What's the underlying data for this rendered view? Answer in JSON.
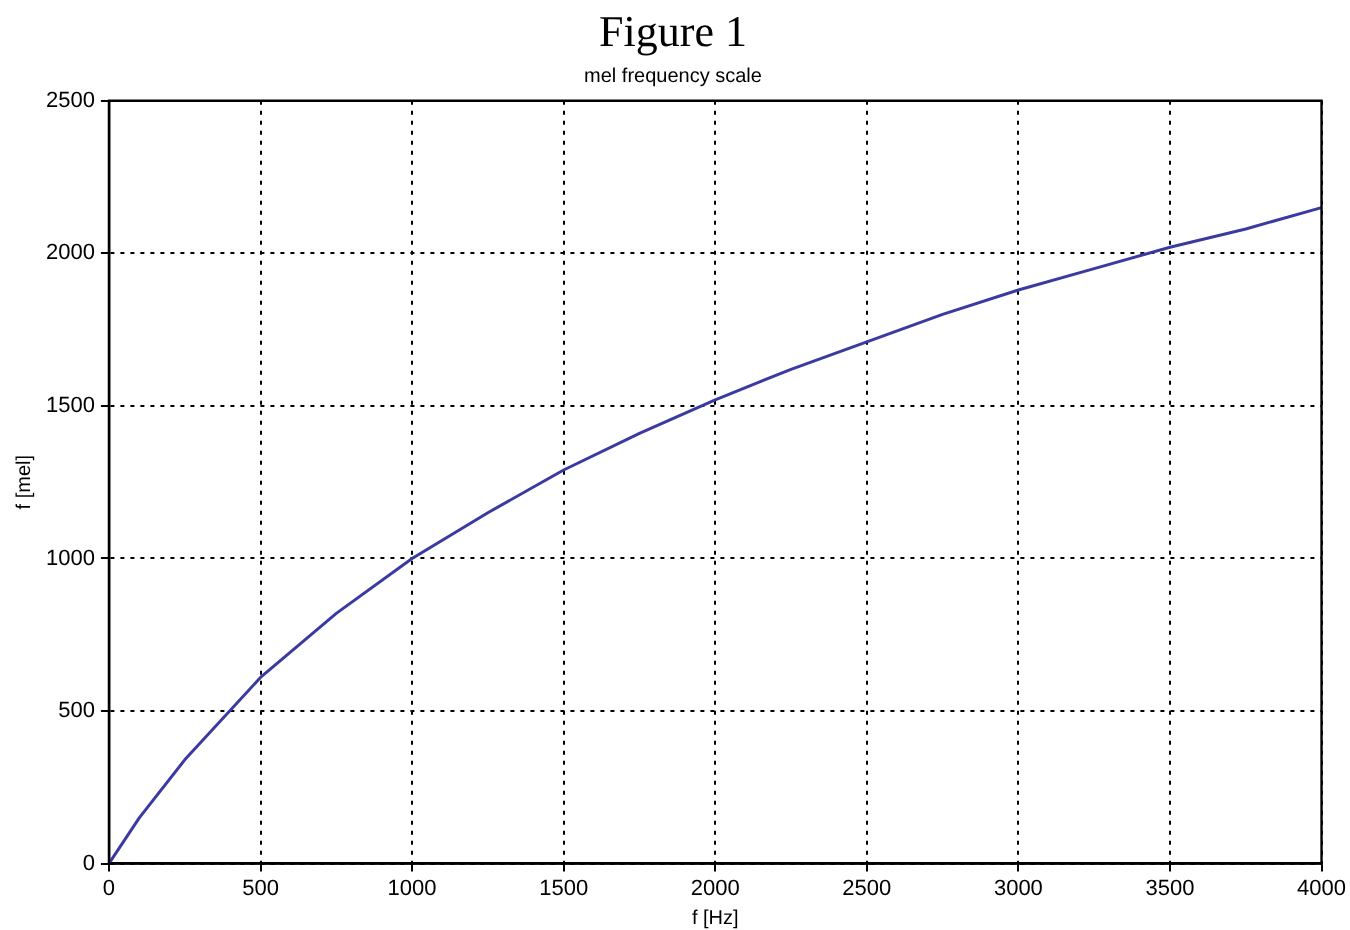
{
  "chart_data": {
    "type": "line",
    "title": "Figure 1",
    "subtitle": "mel frequency scale",
    "xlabel": "f [Hz]",
    "ylabel": "f [mel]",
    "x": [
      0,
      100,
      250,
      500,
      750,
      1000,
      1250,
      1500,
      1750,
      2000,
      2250,
      2500,
      2750,
      3000,
      3250,
      3500,
      3750,
      4000
    ],
    "series": [
      {
        "color": "#3a3aa0",
        "values": [
          0,
          150,
          340,
          610,
          820,
          1000,
          1150,
          1290,
          1410,
          1520,
          1620,
          1710,
          1800,
          1880,
          1950,
          2020,
          2080,
          2150
        ]
      }
    ],
    "xlim": [
      0,
      4000
    ],
    "xticks": [
      0,
      500,
      1000,
      1500,
      2000,
      2500,
      3000,
      3500,
      4000
    ],
    "ylim": [
      0,
      2500
    ],
    "yticks": [
      0,
      500,
      1000,
      1500,
      2000,
      2500
    ],
    "grid": true,
    "legend": false,
    "marker": "none",
    "line_style": "solid"
  }
}
